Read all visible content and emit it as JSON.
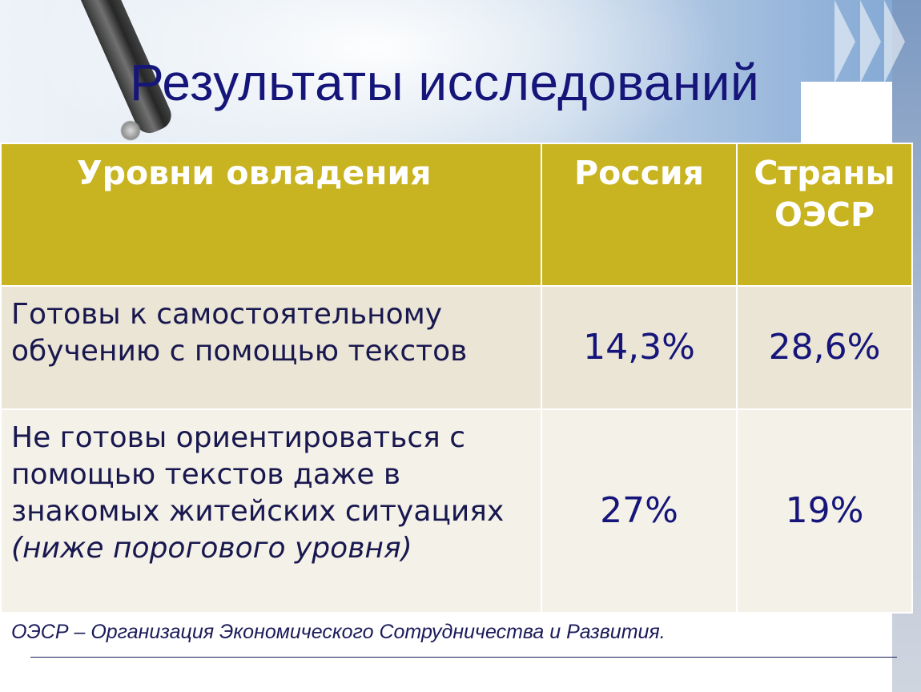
{
  "slide": {
    "title": "Результаты исследований",
    "table": {
      "headers": [
        "Уровни овладения",
        "Россия",
        "Страны ОЭСР"
      ],
      "rows": [
        {
          "level": "Готовы к самостоятельному обучению с помощью текстов",
          "russia": "14,3%",
          "oecd": "28,6%"
        },
        {
          "level": "Не готовы ориентироваться с помощью текстов даже в знакомых житейских ситуациях",
          "level_note": "(ниже порогового уровня)",
          "russia": "27%",
          "oecd": "19%"
        }
      ]
    },
    "footnote": "ОЭСР – Организация Экономического Сотрудничества и Развития."
  },
  "colors": {
    "header_bg": "#c8b320",
    "row1_bg": "#ebe5d6",
    "row2_bg": "#f4f1e8",
    "title_color": "#15157a"
  }
}
